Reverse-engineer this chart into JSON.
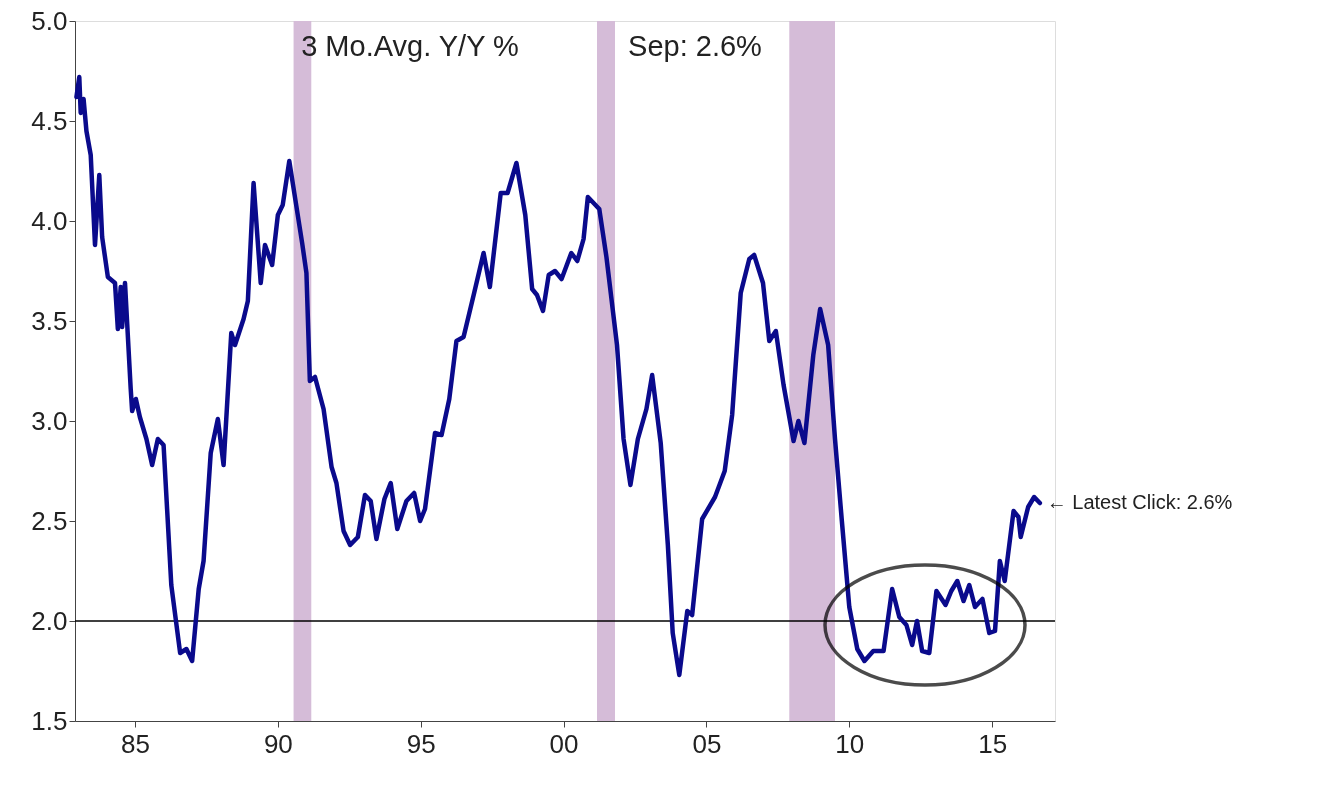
{
  "chart_data": {
    "type": "line",
    "annotations": [
      "3 Mo.Avg.  Y/Y %",
      "Sep: 2.6%",
      {
        "text": "← Latest Click: 2.6%",
        "x": 2016.7,
        "y": 2.59
      }
    ],
    "x": [
      1982.95,
      1983.05,
      1983.1,
      1983.2,
      1983.3,
      1983.45,
      1983.6,
      1983.75,
      1983.85,
      1984.05,
      1984.3,
      1984.4,
      1984.5,
      1984.55,
      1984.65,
      1984.85,
      1984.9,
      1985.03,
      1985.17,
      1985.4,
      1985.6,
      1985.8,
      1986.0,
      1986.27,
      1986.58,
      1986.8,
      1987.0,
      1987.23,
      1987.4,
      1987.65,
      1987.9,
      1988.1,
      1988.37,
      1988.5,
      1988.8,
      1988.95,
      1989.15,
      1989.4,
      1989.55,
      1989.8,
      1990.0,
      1990.17,
      1990.4,
      1990.85,
      1991.0,
      1991.12,
      1991.3,
      1991.6,
      1991.88,
      1992.05,
      1992.3,
      1992.53,
      1992.8,
      1993.05,
      1993.25,
      1993.45,
      1993.73,
      1993.95,
      1994.18,
      1994.5,
      1994.77,
      1994.98,
      1995.15,
      1995.5,
      1995.73,
      1996.0,
      1996.25,
      1996.5,
      1996.87,
      1997.2,
      1997.42,
      1997.8,
      1998.04,
      1998.35,
      1998.66,
      1998.9,
      1999.07,
      1999.28,
      1999.48,
      1999.7,
      1999.93,
      2000.27,
      2000.48,
      2000.7,
      2000.85,
      2001.25,
      2001.5,
      2001.87,
      2002.1,
      2002.34,
      2002.6,
      2002.9,
      2003.1,
      2003.4,
      2003.65,
      2003.82,
      2004.05,
      2004.33,
      2004.5,
      2004.85,
      2005.3,
      2005.64,
      2005.9,
      2006.2,
      2006.5,
      2006.67,
      2006.98,
      2007.2,
      2007.43,
      2007.7,
      2008.05,
      2008.22,
      2008.43,
      2008.74,
      2008.98,
      2009.26,
      2009.5,
      2009.74,
      2010.0,
      2010.28,
      2010.53,
      2010.84,
      2011.2,
      2011.5,
      2011.75,
      2012.0,
      2012.2,
      2012.37,
      2012.55,
      2012.8,
      2013.05,
      2013.37,
      2013.57,
      2013.78,
      2014.0,
      2014.2,
      2014.4,
      2014.66,
      2014.9,
      2015.1,
      2015.27,
      2015.44,
      2015.75,
      2015.92,
      2016.0,
      2016.26,
      2016.47,
      2016.67
    ],
    "series": [
      {
        "color": "#0a0a8c",
        "values": [
          4.62,
          4.72,
          4.54,
          4.61,
          4.45,
          4.33,
          3.88,
          4.23,
          3.92,
          3.72,
          3.69,
          3.46,
          3.67,
          3.47,
          3.69,
          3.16,
          3.05,
          3.11,
          3.02,
          2.91,
          2.78,
          2.91,
          2.88,
          2.18,
          1.84,
          1.86,
          1.8,
          2.16,
          2.3,
          2.84,
          3.01,
          2.78,
          3.44,
          3.38,
          3.51,
          3.6,
          4.19,
          3.69,
          3.88,
          3.78,
          4.03,
          4.08,
          4.3,
          3.89,
          3.74,
          3.2,
          3.22,
          3.06,
          2.77,
          2.69,
          2.45,
          2.38,
          2.42,
          2.63,
          2.6,
          2.41,
          2.61,
          2.69,
          2.46,
          2.6,
          2.64,
          2.5,
          2.56,
          2.94,
          2.93,
          3.11,
          3.4,
          3.42,
          3.64,
          3.84,
          3.67,
          4.14,
          4.14,
          4.29,
          4.03,
          3.66,
          3.63,
          3.55,
          3.73,
          3.75,
          3.71,
          3.84,
          3.8,
          3.91,
          4.12,
          4.06,
          3.82,
          3.38,
          2.91,
          2.68,
          2.91,
          3.06,
          3.23,
          2.89,
          2.38,
          1.94,
          1.73,
          2.05,
          2.03,
          2.51,
          2.62,
          2.75,
          3.03,
          3.64,
          3.81,
          3.83,
          3.69,
          3.4,
          3.45,
          3.18,
          2.9,
          3.0,
          2.89,
          3.33,
          3.56,
          3.38,
          2.91,
          2.5,
          2.07,
          1.86,
          1.8,
          1.85,
          1.85,
          2.16,
          2.02,
          1.98,
          1.88,
          2.0,
          1.85,
          1.84,
          2.15,
          2.08,
          2.15,
          2.2,
          2.1,
          2.18,
          2.07,
          2.11,
          1.94,
          1.95,
          2.3,
          2.2,
          2.55,
          2.52,
          2.42,
          2.57,
          2.62,
          2.59
        ]
      }
    ],
    "xlim": [
      1982.9,
      2017.2
    ],
    "xticks": [
      {
        "value": 1985,
        "label": "85"
      },
      {
        "value": 1990,
        "label": "90"
      },
      {
        "value": 1995,
        "label": "95"
      },
      {
        "value": 2000,
        "label": "00"
      },
      {
        "value": 2005,
        "label": "05"
      },
      {
        "value": 2010,
        "label": "10"
      },
      {
        "value": 2015,
        "label": "15"
      }
    ],
    "ylim": [
      1.5,
      5.0
    ],
    "yticks": [
      {
        "value": 1.5,
        "label": "1.5"
      },
      {
        "value": 2,
        "label": "2.0"
      },
      {
        "value": 2.5,
        "label": "2.5"
      },
      {
        "value": 3,
        "label": "3.0"
      },
      {
        "value": 3.5,
        "label": "3.5"
      },
      {
        "value": 4,
        "label": "4.0"
      },
      {
        "value": 4.5,
        "label": "4.5"
      },
      {
        "value": 5,
        "label": "5.0"
      }
    ],
    "ref_lines": [
      {
        "axis": "y",
        "value": 2,
        "color": "#000000"
      }
    ],
    "bands": [
      {
        "axis": "x",
        "from": 1990.55,
        "to": 1991.17,
        "color": "#d5bcd8"
      },
      {
        "axis": "x",
        "from": 2001.17,
        "to": 2001.8,
        "color": "#d5bcd8"
      },
      {
        "axis": "x",
        "from": 2007.9,
        "to": 2009.5,
        "color": "#d5bcd8"
      }
    ],
    "grid": false,
    "marker": "none",
    "line_style": "solid"
  }
}
